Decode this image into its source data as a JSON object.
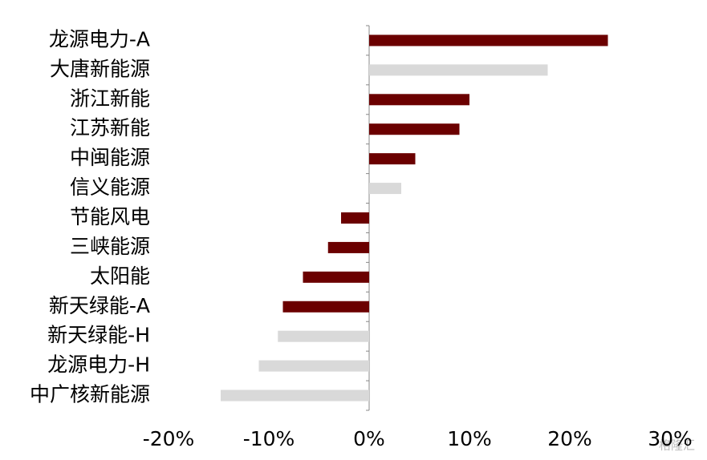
{
  "chart_data": {
    "type": "barh",
    "categories": [
      "龙源电力-A",
      "大唐新能源",
      "浙江新能",
      "江苏新能",
      "中闽能源",
      "信义能源",
      "节能风电",
      "三峡能源",
      "太阳能",
      "新天绿能-A",
      "新天绿能-H",
      "龙源电力-H",
      "中广核新能源"
    ],
    "values": [
      23.8,
      17.8,
      10.0,
      9.0,
      4.6,
      3.2,
      -2.8,
      -4.1,
      -6.6,
      -8.6,
      -9.1,
      -11.0,
      -14.8
    ],
    "colors": [
      "#6b0000",
      "#d9d9d9",
      "#6b0000",
      "#6b0000",
      "#6b0000",
      "#d9d9d9",
      "#6b0000",
      "#6b0000",
      "#6b0000",
      "#6b0000",
      "#d9d9d9",
      "#d9d9d9",
      "#d9d9d9"
    ],
    "xlim": [
      -20,
      30
    ],
    "xticks": [
      {
        "value": -20,
        "label": "-20%"
      },
      {
        "value": -10,
        "label": "-10%"
      },
      {
        "value": 0,
        "label": "0%"
      },
      {
        "value": 10,
        "label": "10%"
      },
      {
        "value": 20,
        "label": "20%"
      },
      {
        "value": 30,
        "label": "30%"
      }
    ],
    "grid": false,
    "watermark": "格隆汇"
  }
}
